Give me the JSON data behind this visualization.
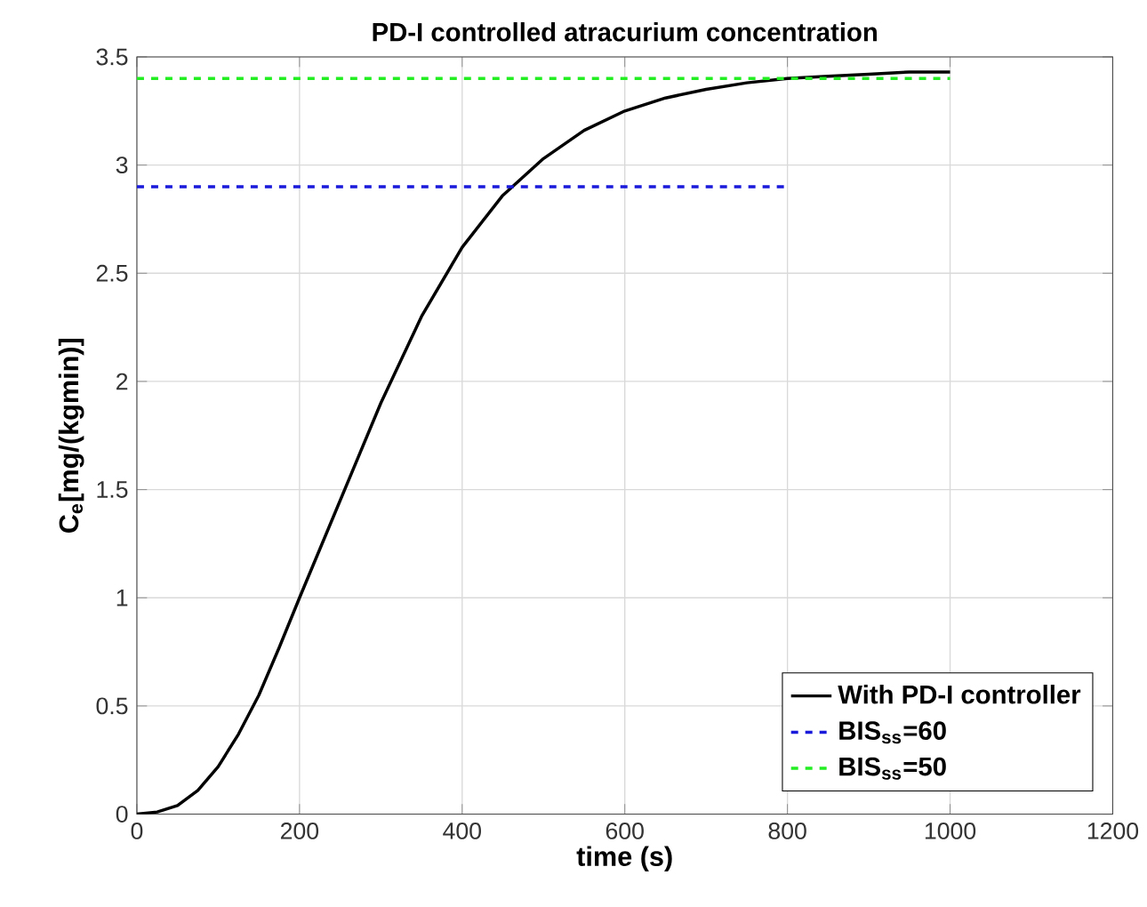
{
  "chart_data": {
    "type": "line",
    "title": "PD-I controlled atracurium concentration",
    "xlabel": "time (s)",
    "ylabel": "C$_{e}$[mg/(kgmin)]",
    "xlim": [
      0,
      1200
    ],
    "ylim": [
      0,
      3.5
    ],
    "xticks": [
      0,
      200,
      400,
      600,
      800,
      1000,
      1200
    ],
    "yticks": [
      0,
      0.5,
      1,
      1.5,
      2,
      2.5,
      3,
      3.5
    ],
    "grid": true,
    "legend": "bottom right",
    "marker": "none",
    "series": [
      {
        "name": "With PD-I controller",
        "color": "#000000",
        "line_style": "solid",
        "x": [
          0,
          25,
          50,
          75,
          100,
          125,
          150,
          175,
          200,
          250,
          300,
          350,
          400,
          450,
          500,
          550,
          600,
          650,
          700,
          750,
          800,
          850,
          900,
          950,
          1000
        ],
        "values": [
          0,
          0.01,
          0.04,
          0.11,
          0.22,
          0.37,
          0.55,
          0.77,
          1.0,
          1.45,
          1.9,
          2.3,
          2.62,
          2.86,
          3.03,
          3.16,
          3.25,
          3.31,
          3.35,
          3.38,
          3.4,
          3.41,
          3.42,
          3.43,
          3.43
        ]
      },
      {
        "name": "BIS$_{ss}$=60",
        "color": "#1a1adb",
        "line_style": "dashed",
        "x": [
          0,
          800
        ],
        "values": [
          2.9,
          2.9
        ]
      },
      {
        "name": "BIS$_{ss}$=50",
        "color": "#22ee22",
        "line_style": "dashed",
        "x": [
          0,
          1000
        ],
        "values": [
          3.4,
          3.4
        ]
      }
    ]
  }
}
